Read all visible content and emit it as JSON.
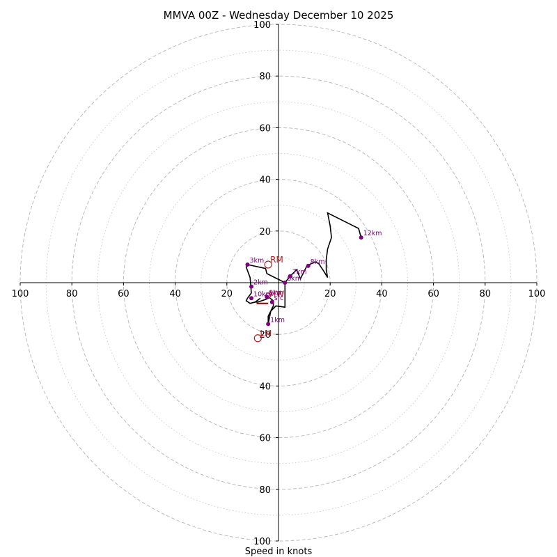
{
  "chart_data": {
    "type": "hodograph",
    "title": "MMVA 00Z - Wednesday December 10 2025",
    "xlabel": "Speed in knots",
    "xlim": [
      -100,
      100
    ],
    "ylim": [
      -100,
      100
    ],
    "rings_major": [
      20,
      40,
      60,
      80,
      100
    ],
    "rings_minor": [
      10,
      30,
      50,
      70,
      90
    ],
    "x_tick_labels": [
      "100",
      "80",
      "60",
      "40",
      "20",
      "20",
      "40",
      "60",
      "80",
      "100"
    ],
    "x_tick_values": [
      -100,
      -80,
      -60,
      -40,
      -20,
      20,
      40,
      60,
      80,
      100
    ],
    "y_tick_labels": [
      "100",
      "80",
      "60",
      "40",
      "20",
      "20",
      "40",
      "60",
      "80",
      "100"
    ],
    "y_tick_values": [
      100,
      80,
      60,
      40,
      20,
      -20,
      -40,
      -60,
      -80,
      -100
    ],
    "colors": {
      "trace": "#000000",
      "height_marker": "#800080",
      "motion": "#b22222",
      "grid": "#bbbbbb"
    },
    "trace": [
      [
        -7,
        -6
      ],
      [
        -9,
        -7.5
      ],
      [
        -8,
        -7.5
      ],
      [
        -5,
        -6.5
      ],
      [
        -3.5,
        -5.8
      ],
      [
        -2,
        -7
      ],
      [
        -2,
        -9
      ],
      [
        -4,
        -13
      ],
      [
        -4,
        -16
      ],
      [
        -3,
        -11
      ],
      [
        -1,
        -9
      ],
      [
        2.5,
        -9.5
      ],
      [
        2.5,
        -6.5
      ],
      [
        2.5,
        -2
      ],
      [
        2.5,
        0
      ],
      [
        4.5,
        2.5
      ],
      [
        7,
        5
      ],
      [
        8.5,
        1.5
      ],
      [
        11,
        6.5
      ],
      [
        12,
        7
      ],
      [
        14,
        8
      ],
      [
        15.5,
        7.5
      ],
      [
        17.5,
        4.5
      ],
      [
        19,
        2
      ],
      [
        18.5,
        5
      ],
      [
        18.5,
        9
      ],
      [
        19,
        13
      ],
      [
        20.5,
        17.5
      ],
      [
        20,
        22
      ],
      [
        19,
        27
      ],
      [
        31,
        21
      ],
      [
        32,
        17.5
      ]
    ],
    "trace_tail": [
      [
        2.5,
        0
      ],
      [
        -4.5,
        3.5
      ],
      [
        -5,
        5.5
      ],
      [
        -12,
        7
      ],
      [
        -12.5,
        6
      ],
      [
        -11,
        2
      ],
      [
        -10.5,
        -4
      ],
      [
        -12,
        -6
      ],
      [
        -12.5,
        -7
      ],
      [
        -11,
        -8
      ],
      [
        -9,
        -7.5
      ]
    ],
    "heights": [
      {
        "label": "sfc",
        "u": -2.5,
        "v": -7.5
      },
      {
        "label": "1km",
        "u": -4,
        "v": -16
      },
      {
        "label": "2km",
        "u": -10.5,
        "v": -1.5
      },
      {
        "label": "3km",
        "u": -12,
        "v": 7
      },
      {
        "label": "6km",
        "u": 2.5,
        "v": 0
      },
      {
        "label": "7km",
        "u": 4.5,
        "v": 2.5
      },
      {
        "label": "8km",
        "u": 11.5,
        "v": 6.5
      },
      {
        "label": "9km",
        "u": -4.5,
        "v": -5.5
      },
      {
        "label": "10km",
        "u": -10.5,
        "v": -6
      },
      {
        "label": "12km",
        "u": 32,
        "v": 17.5
      }
    ],
    "storm_motion": [
      {
        "label": "RM",
        "u": -4,
        "v": 7
      },
      {
        "label": "LM",
        "u": -8,
        "v": -21.5
      }
    ],
    "mean_wind": {
      "label": "MW",
      "u": -4,
      "v": -5
    },
    "mean_wind_line": [
      [
        -8.5,
        -8
      ],
      [
        -4,
        -8
      ]
    ]
  }
}
